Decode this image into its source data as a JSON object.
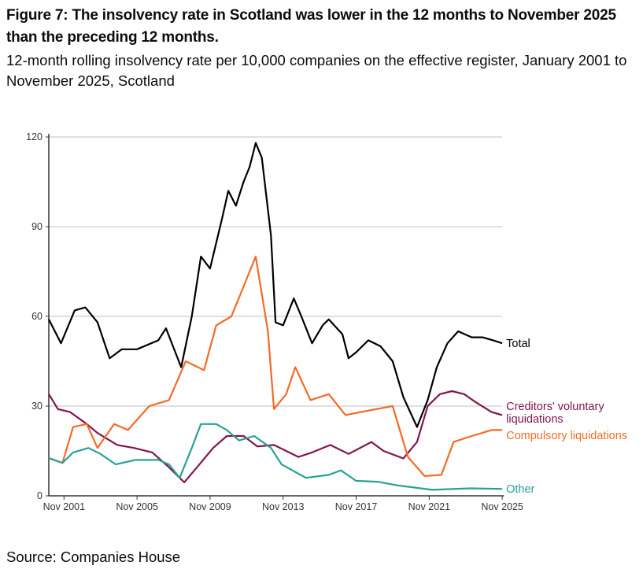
{
  "title": "Figure 7: The insolvency rate in Scotland was lower in the 12 months to November 2025 than the preceding 12 months.",
  "subtitle": "12-month rolling insolvency rate per 10,000 companies on the effective register, January 2001 to November 2025, Scotland",
  "source": "Source: Companies House",
  "chart_data": {
    "type": "line",
    "title": "",
    "xlabel": "",
    "ylabel": "",
    "ylim": [
      0,
      120
    ],
    "yticks": [
      "0",
      "30",
      "60",
      "90",
      "120"
    ],
    "xticks": [
      "Nov 2001",
      "Nov 2005",
      "Nov 2009",
      "Nov 2013",
      "Nov 2017",
      "Nov 2021",
      "Nov 2025"
    ],
    "xrange": [
      "2001-01",
      "2025-11"
    ],
    "grid": "horizontal",
    "legend": "direct labels at line ends (right)",
    "series": [
      {
        "name": "Total",
        "color": "#000000",
        "points": [
          [
            "2001-01",
            59
          ],
          [
            "2001-09",
            51
          ],
          [
            "2002-06",
            62
          ],
          [
            "2003-01",
            63
          ],
          [
            "2003-09",
            58
          ],
          [
            "2004-05",
            46
          ],
          [
            "2005-01",
            49
          ],
          [
            "2005-11",
            49
          ],
          [
            "2007-01",
            52
          ],
          [
            "2007-06",
            56
          ],
          [
            "2008-04",
            43
          ],
          [
            "2008-11",
            60
          ],
          [
            "2009-05",
            80
          ],
          [
            "2009-11",
            76
          ],
          [
            "2010-07",
            93
          ],
          [
            "2010-11",
            102
          ],
          [
            "2011-04",
            97
          ],
          [
            "2011-09",
            105
          ],
          [
            "2012-01",
            110
          ],
          [
            "2012-05",
            118
          ],
          [
            "2012-09",
            113
          ],
          [
            "2013-03",
            87
          ],
          [
            "2013-06",
            58
          ],
          [
            "2013-11",
            57
          ],
          [
            "2014-06",
            66
          ],
          [
            "2014-11",
            60
          ],
          [
            "2015-06",
            51
          ],
          [
            "2016-01",
            57
          ],
          [
            "2016-05",
            59
          ],
          [
            "2017-02",
            54
          ],
          [
            "2017-06",
            46
          ],
          [
            "2017-11",
            48
          ],
          [
            "2018-07",
            52
          ],
          [
            "2019-03",
            50
          ],
          [
            "2019-11",
            45
          ],
          [
            "2020-06",
            33
          ],
          [
            "2021-03",
            23
          ],
          [
            "2021-10",
            32
          ],
          [
            "2022-04",
            43
          ],
          [
            "2022-11",
            51
          ],
          [
            "2023-06",
            55
          ],
          [
            "2024-03",
            53
          ],
          [
            "2024-10",
            53
          ],
          [
            "2025-05",
            52
          ],
          [
            "2025-11",
            51
          ]
        ]
      },
      {
        "name": "Creditors' voluntary liquidations",
        "color": "#801650",
        "points": [
          [
            "2001-01",
            34
          ],
          [
            "2001-07",
            29
          ],
          [
            "2002-03",
            28
          ],
          [
            "2003-02",
            24
          ],
          [
            "2003-09",
            21
          ],
          [
            "2004-10",
            17
          ],
          [
            "2005-09",
            16
          ],
          [
            "2006-09",
            14.5
          ],
          [
            "2007-07",
            10
          ],
          [
            "2008-06",
            4.5
          ],
          [
            "2009-04",
            10.5
          ],
          [
            "2010-01",
            16
          ],
          [
            "2010-10",
            20
          ],
          [
            "2011-09",
            20
          ],
          [
            "2012-06",
            16.5
          ],
          [
            "2013-05",
            17
          ],
          [
            "2014-09",
            13
          ],
          [
            "2015-06",
            14.5
          ],
          [
            "2016-06",
            17
          ],
          [
            "2017-06",
            14
          ],
          [
            "2018-09",
            18
          ],
          [
            "2019-05",
            15
          ],
          [
            "2020-06",
            12.5
          ],
          [
            "2021-03",
            18
          ],
          [
            "2021-10",
            30
          ],
          [
            "2022-06",
            34
          ],
          [
            "2023-02",
            35
          ],
          [
            "2023-10",
            34
          ],
          [
            "2024-05",
            31.5
          ],
          [
            "2025-04",
            28
          ],
          [
            "2025-11",
            27
          ]
        ]
      },
      {
        "name": "Compulsory liquidations",
        "color": "#f46a25",
        "points": [
          [
            "2001-01",
            12.6
          ],
          [
            "2001-10",
            11
          ],
          [
            "2002-05",
            23
          ],
          [
            "2003-02",
            24
          ],
          [
            "2003-09",
            16
          ],
          [
            "2004-08",
            24
          ],
          [
            "2005-05",
            22
          ],
          [
            "2006-07",
            30
          ],
          [
            "2007-08",
            32
          ],
          [
            "2008-07",
            45
          ],
          [
            "2009-07",
            42
          ],
          [
            "2010-03",
            57
          ],
          [
            "2011-01",
            60
          ],
          [
            "2011-09",
            70
          ],
          [
            "2012-05",
            80
          ],
          [
            "2013-01",
            55
          ],
          [
            "2013-05",
            29
          ],
          [
            "2014-01",
            34
          ],
          [
            "2014-07",
            43
          ],
          [
            "2015-05",
            32
          ],
          [
            "2016-05",
            34
          ],
          [
            "2017-04",
            27
          ],
          [
            "2018-02",
            28
          ],
          [
            "2019-11",
            30
          ],
          [
            "2020-09",
            13
          ],
          [
            "2021-08",
            6.6
          ],
          [
            "2022-07",
            7
          ],
          [
            "2023-03",
            18
          ],
          [
            "2024-03",
            20
          ],
          [
            "2025-04",
            22
          ],
          [
            "2025-11",
            22
          ]
        ]
      },
      {
        "name": "Other",
        "color": "#28a197",
        "points": [
          [
            "2001-01",
            12.6
          ],
          [
            "2001-10",
            11
          ],
          [
            "2002-05",
            14.5
          ],
          [
            "2003-03",
            16
          ],
          [
            "2003-11",
            14
          ],
          [
            "2004-09",
            10.5
          ],
          [
            "2005-10",
            12
          ],
          [
            "2007-01",
            12
          ],
          [
            "2007-08",
            10.5
          ],
          [
            "2008-03",
            6
          ],
          [
            "2008-11",
            16
          ],
          [
            "2009-05",
            24
          ],
          [
            "2010-03",
            24
          ],
          [
            "2010-10",
            22
          ],
          [
            "2011-06",
            18.5
          ],
          [
            "2012-04",
            20
          ],
          [
            "2013-03",
            16
          ],
          [
            "2013-10",
            10.5
          ],
          [
            "2015-02",
            6
          ],
          [
            "2016-05",
            7
          ],
          [
            "2017-01",
            8.5
          ],
          [
            "2017-11",
            5
          ],
          [
            "2019-01",
            4.7
          ],
          [
            "2020-02",
            3.5
          ],
          [
            "2022-01",
            2
          ],
          [
            "2024-02",
            2.5
          ],
          [
            "2025-11",
            2.3
          ]
        ]
      }
    ]
  }
}
